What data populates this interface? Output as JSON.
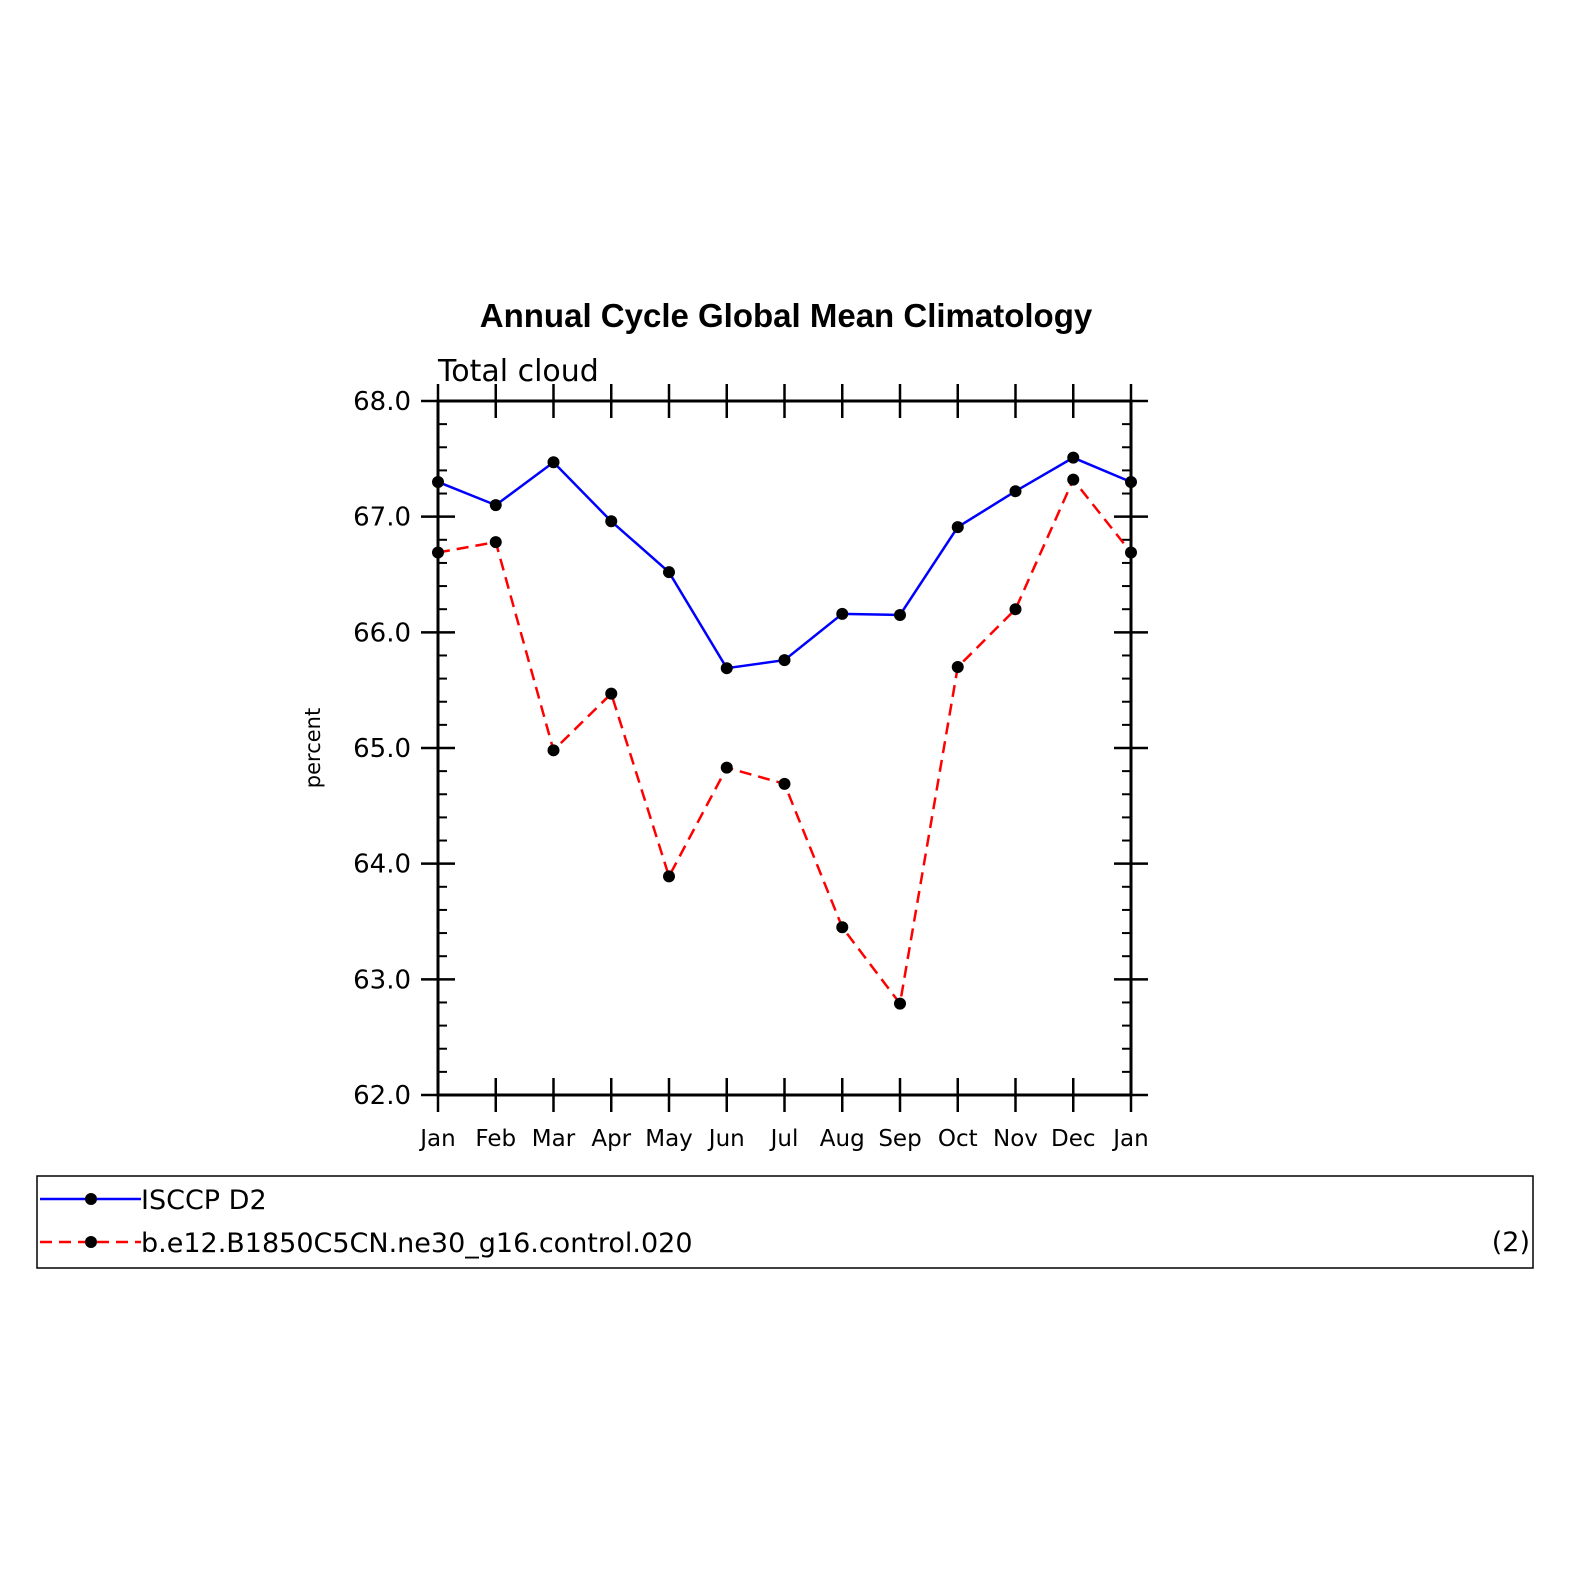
{
  "chart_data": {
    "type": "line",
    "title": "Annual Cycle Global Mean Climatology",
    "subtitle": "Total cloud",
    "xlabel": "",
    "ylabel": "percent",
    "ylim": [
      62.0,
      68.0
    ],
    "yticks": [
      "62.0",
      "63.0",
      "64.0",
      "65.0",
      "66.0",
      "67.0",
      "68.0"
    ],
    "categories": [
      "Jan",
      "Feb",
      "Mar",
      "Apr",
      "May",
      "Jun",
      "Jul",
      "Aug",
      "Sep",
      "Oct",
      "Nov",
      "Dec",
      "Jan"
    ],
    "grid": false,
    "legend_position": "bottom",
    "series": [
      {
        "name": "ISCCP D2",
        "color": "#0000ff",
        "line_style": "solid",
        "marker": "filled-circle",
        "values": [
          67.3,
          67.1,
          67.47,
          66.96,
          66.52,
          65.69,
          65.76,
          66.16,
          66.15,
          66.91,
          67.22,
          67.51,
          67.3
        ]
      },
      {
        "name": "b.e12.B1850C5CN.ne30_g16.control.020",
        "color": "#ff0000",
        "line_style": "dashed",
        "marker": "filled-circle",
        "values": [
          66.69,
          66.78,
          64.98,
          65.47,
          63.89,
          64.83,
          64.69,
          63.45,
          62.79,
          65.7,
          66.2,
          67.32,
          66.69
        ]
      }
    ],
    "legend_note": "(2)"
  }
}
